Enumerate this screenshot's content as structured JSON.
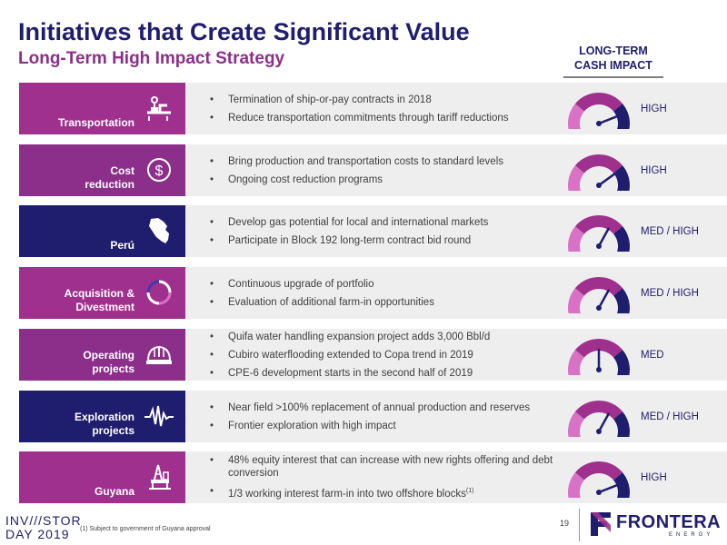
{
  "header": {
    "title": "Initiatives that Create Significant Value",
    "subtitle": "Long-Term High Impact Strategy",
    "column_header": "LONG-TERM\nCASH IMPACT"
  },
  "colors": {
    "navy": "#1f1e6e",
    "magenta": "#a0308e",
    "purple": "#8b2f8a",
    "gauge_pink": "#d872c4",
    "gauge_magenta": "#a0308e",
    "gauge_navy": "#1f1e6e",
    "row_bg": "#eeeeee"
  },
  "rows": [
    {
      "label": "Transportation",
      "color": "#a0308e",
      "icon": "pipeline-valve-icon",
      "bullets": [
        {
          "text": "Termination of ship-or-pay contracts in 2018"
        },
        {
          "text": "Reduce transportation commitments through tariff reductions"
        }
      ],
      "impact": "HIGH",
      "needle_level": 0.88
    },
    {
      "label": "Cost\nreduction",
      "color": "#8b2f8a",
      "icon": "dollar-coin-icon",
      "bullets": [
        {
          "text": "Bring production and transportation costs to standard levels"
        },
        {
          "text": "Ongoing cost reduction programs"
        }
      ],
      "impact": "HIGH",
      "needle_level": 0.8
    },
    {
      "label": "Perú",
      "color": "#1f1e6e",
      "icon": "peru-map-icon",
      "bullets": [
        {
          "text": "Develop gas potential for local and international markets"
        },
        {
          "text": "Participate in Block 192 long-term contract bid round"
        }
      ],
      "impact": "MED / HIGH",
      "needle_level": 0.66
    },
    {
      "label": "Acquisition &\nDivestment",
      "color": "#a0308e",
      "icon": "cycle-arrows-icon",
      "bullets": [
        {
          "text": "Continuous upgrade of portfolio"
        },
        {
          "text": "Evaluation of additional farm-in opportunities"
        }
      ],
      "impact": "MED / HIGH",
      "needle_level": 0.66
    },
    {
      "label": "Operating\nprojects",
      "color": "#8b2f8a",
      "icon": "hard-hat-icon",
      "bullets": [
        {
          "text": "Quifa water handling expansion project adds 3,000 Bbl/d"
        },
        {
          "text": "Cubiro waterflooding extended to Copa trend in 2019"
        },
        {
          "text": "CPE-6 development starts in the second half of 2019"
        }
      ],
      "impact": "MED",
      "needle_level": 0.5
    },
    {
      "label": "Exploration\nprojects",
      "color": "#1f1e6e",
      "icon": "seismic-wave-icon",
      "bullets": [
        {
          "text": "Near field >100% replacement of annual production and reserves"
        },
        {
          "text": "Frontier exploration with high impact"
        }
      ],
      "impact": "MED / HIGH",
      "needle_level": 0.66
    },
    {
      "label": "Guyana",
      "color": "#a0308e",
      "icon": "offshore-rig-icon",
      "bullets": [
        {
          "text": "48% equity interest that can increase with new rights offering and debt conversion"
        },
        {
          "text": "1/3 working interest farm-in into two offshore blocks",
          "sup": "(1)"
        }
      ],
      "impact": "HIGH",
      "needle_level": 0.88
    }
  ],
  "footer": {
    "event_line1": "INV///STOR",
    "event_line2": "DAY 2019",
    "footnote": "(1) Subject to government of Guyana approval",
    "page_number": "19",
    "brand_name": "FRONTERA",
    "brand_sub": "ENERGY"
  }
}
